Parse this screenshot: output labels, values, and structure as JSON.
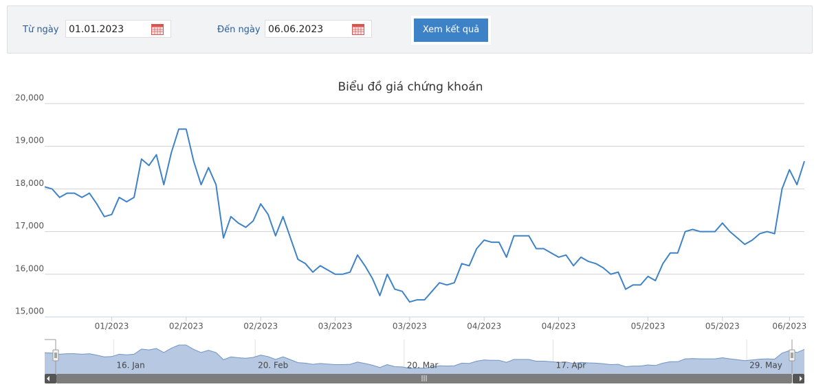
{
  "filter": {
    "from_label": "Từ ngày",
    "from_value": "01.01.2023",
    "to_label": "Đến ngày",
    "to_value": "06.06.2023",
    "button": "Xem kết quả"
  },
  "chart_data": {
    "type": "line",
    "title": "Biểu đồ giá chứng khoán",
    "color": "#3d82c7",
    "grid": true,
    "ylim": [
      15000,
      20000
    ],
    "yticks": [
      {
        "value": 15000,
        "label": "15,000"
      },
      {
        "value": 16000,
        "label": "16,000"
      },
      {
        "value": 17000,
        "label": "17,000"
      },
      {
        "value": 18000,
        "label": "18,000"
      },
      {
        "value": 19000,
        "label": "19,000"
      },
      {
        "value": 20000,
        "label": "20,000"
      }
    ],
    "categories": [
      null,
      null,
      null,
      null,
      null,
      null,
      null,
      null,
      null,
      "01/2023",
      null,
      null,
      null,
      null,
      null,
      null,
      null,
      null,
      null,
      "02/2023",
      null,
      null,
      null,
      null,
      null,
      null,
      null,
      null,
      null,
      "02/2023",
      null,
      null,
      null,
      null,
      null,
      null,
      null,
      null,
      null,
      "03/2023",
      null,
      null,
      null,
      null,
      null,
      null,
      null,
      null,
      null,
      "03/2023",
      null,
      null,
      null,
      null,
      null,
      null,
      null,
      null,
      null,
      "04/2023",
      null,
      null,
      null,
      null,
      null,
      null,
      null,
      null,
      null,
      "04/2023",
      null,
      null,
      null,
      null,
      null,
      null,
      null,
      null,
      null,
      null,
      null,
      "05/2023",
      null,
      null,
      null,
      null,
      null,
      null,
      null,
      null,
      null,
      "05/2023",
      null,
      null,
      null,
      null,
      null,
      null,
      null,
      null,
      "06/2023",
      null,
      null
    ],
    "values": [
      18050,
      18000,
      17800,
      17900,
      17900,
      17800,
      17900,
      17650,
      17350,
      17400,
      17800,
      17700,
      17800,
      18700,
      18550,
      18800,
      18100,
      18850,
      19400,
      19400,
      18650,
      18100,
      18500,
      18100,
      16850,
      17350,
      17200,
      17100,
      17250,
      17650,
      17400,
      16900,
      17350,
      16850,
      16350,
      16250,
      16050,
      16200,
      16100,
      16000,
      16000,
      16050,
      16450,
      16200,
      15900,
      15500,
      16000,
      15650,
      15600,
      15350,
      15400,
      15400,
      15600,
      15800,
      15750,
      15800,
      16250,
      16200,
      16600,
      16800,
      16750,
      16750,
      16400,
      16900,
      16900,
      16900,
      16600,
      16600,
      16500,
      16400,
      16450,
      16200,
      16400,
      16300,
      16250,
      16150,
      16000,
      16050,
      15650,
      15750,
      15750,
      15950,
      15850,
      16250,
      16500,
      16500,
      17000,
      17050,
      17000,
      17000,
      17000,
      17200,
      17000,
      16850,
      16700,
      16800,
      16950,
      17000,
      16950,
      18000,
      18450,
      18100,
      18650
    ],
    "navigator": {
      "categories": [
        null,
        null,
        null,
        null,
        null,
        null,
        null,
        null,
        null,
        null,
        "16. Jan",
        null,
        null,
        null,
        null,
        null,
        null,
        null,
        null,
        null,
        null,
        null,
        null,
        null,
        null,
        null,
        null,
        null,
        null,
        "20. Feb",
        null,
        null,
        null,
        null,
        null,
        null,
        null,
        null,
        null,
        null,
        null,
        null,
        null,
        null,
        null,
        null,
        null,
        null,
        null,
        "20. Mar",
        null,
        null,
        null,
        null,
        null,
        null,
        null,
        null,
        null,
        null,
        null,
        null,
        null,
        null,
        null,
        null,
        null,
        null,
        null,
        "17. Apr",
        null,
        null,
        null,
        null,
        null,
        null,
        null,
        null,
        null,
        null,
        null,
        null,
        null,
        null,
        null,
        null,
        null,
        null,
        null,
        null,
        null,
        null,
        null,
        null,
        null,
        "29. May",
        null,
        null,
        null,
        null,
        null,
        null,
        null,
        null
      ]
    }
  }
}
